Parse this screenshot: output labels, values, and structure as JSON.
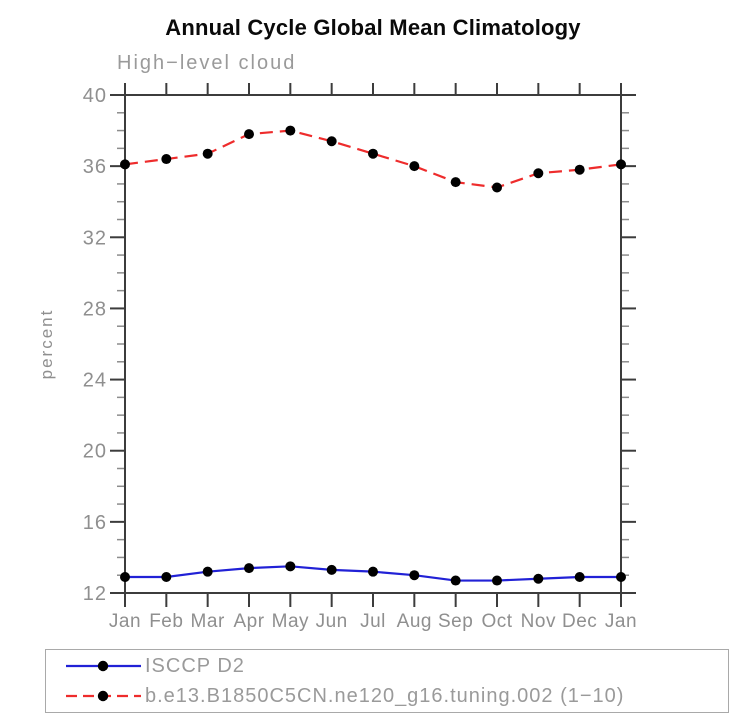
{
  "chart_data": {
    "type": "line",
    "title": "Annual Cycle Global Mean Climatology",
    "subtitle": "High−level cloud",
    "xlabel": "",
    "ylabel": "percent",
    "x_tick_labels": [
      "Jan",
      "Feb",
      "Mar",
      "Apr",
      "May",
      "Jun",
      "Jul",
      "Aug",
      "Sep",
      "Oct",
      "Nov",
      "Dec",
      "Jan"
    ],
    "ylim": [
      12,
      40
    ],
    "y_major_ticks": [
      12,
      16,
      20,
      24,
      28,
      32,
      36,
      40
    ],
    "y_minor_step": 1,
    "grid": false,
    "legend_position": "boxed legend below plot, left-aligned",
    "series": [
      {
        "name": "ISCCP D2",
        "color": "#2121d6",
        "line_style": "solid",
        "marker": "filled-circle",
        "marker_color": "#000000",
        "values": [
          12.9,
          12.9,
          13.2,
          13.4,
          13.5,
          13.3,
          13.2,
          13.0,
          12.7,
          12.7,
          12.8,
          12.9,
          12.9
        ]
      },
      {
        "name": "b.e13.B1850C5CN.ne120_g16.tuning.002 (1−10)",
        "color": "#ee2c2c",
        "line_style": "dashed",
        "marker": "filled-circle",
        "marker_color": "#000000",
        "values": [
          36.1,
          36.4,
          36.7,
          37.8,
          38.0,
          37.4,
          36.7,
          36.0,
          35.1,
          34.8,
          35.6,
          35.8,
          36.1
        ]
      }
    ],
    "colors": {
      "axis": "#3c3c3c",
      "minor_tick": "#8c8c8c",
      "tick_text": "#8f8f8f",
      "title_text": "#0a0a0a",
      "subtitle_text": "#9a9a9a",
      "legend_border": "#a9a9a9",
      "background": "#ffffff"
    }
  }
}
